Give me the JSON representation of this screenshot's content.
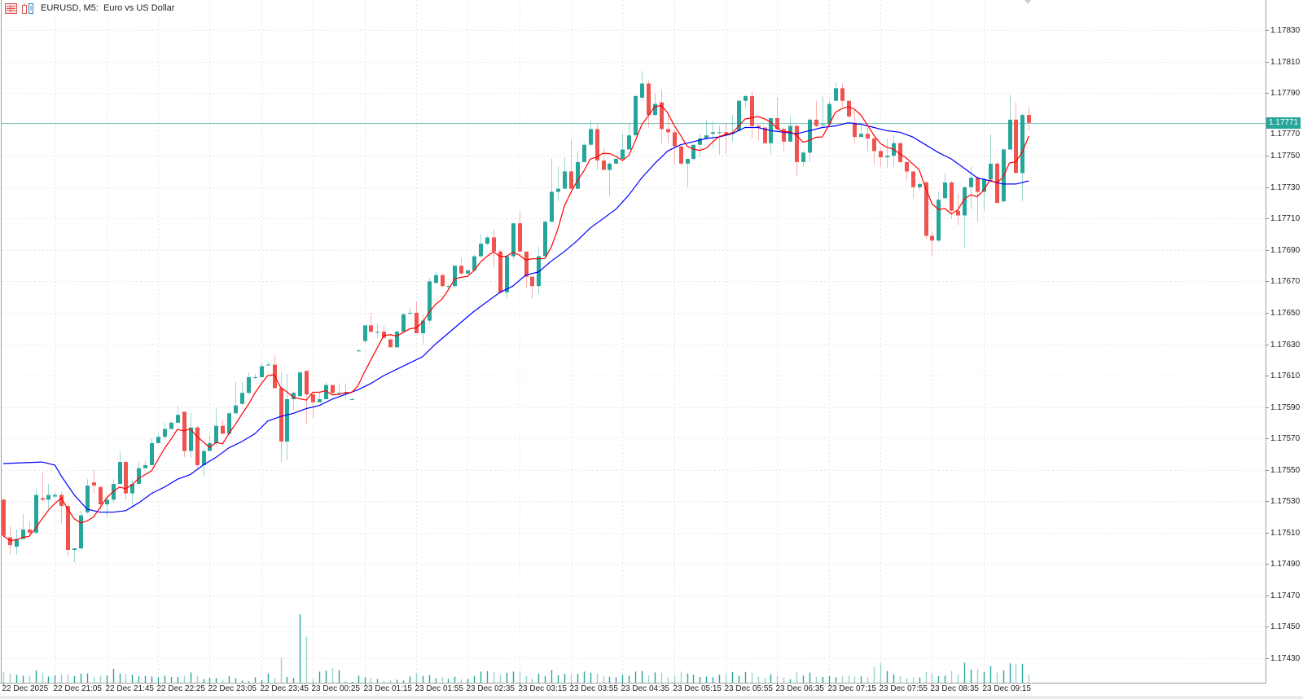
{
  "window": {
    "title": "EURUSD, M5:  Euro vs US Dollar",
    "icons": [
      "chart-menu-icon",
      "chart-properties-icon"
    ]
  },
  "colors": {
    "bull": "#26a69a",
    "bear": "#ef5350",
    "ma_fast": "#ff0000",
    "ma_slow": "#0000ff",
    "bid_line": "#7cc4bb",
    "price_label_bg": "#26a69a"
  },
  "chart_data": {
    "type": "candlestick",
    "symbol": "EURUSD",
    "timeframe": "M5",
    "current_price": "1.17771",
    "ylim": [
      1.1742,
      1.1785
    ],
    "grid": true,
    "price_ticks": [
      "1.17830",
      "1.17810",
      "1.17790",
      "1.17770",
      "1.17750",
      "1.17730",
      "1.17710",
      "1.17690",
      "1.17670",
      "1.17650",
      "1.17630",
      "1.17610",
      "1.17590",
      "1.17570",
      "1.17550",
      "1.17530",
      "1.17510",
      "1.17490",
      "1.17470",
      "1.17450",
      "1.17430"
    ],
    "time_ticks": [
      "22 Dec 2025",
      "22 Dec 21:05",
      "22 Dec 21:45",
      "22 Dec 22:25",
      "22 Dec 23:05",
      "22 Dec 23:45",
      "23 Dec 00:25",
      "23 Dec 01:15",
      "23 Dec 01:55",
      "23 Dec 02:35",
      "23 Dec 03:15",
      "23 Dec 03:55",
      "23 Dec 04:35",
      "23 Dec 05:15",
      "23 Dec 05:55",
      "23 Dec 06:35",
      "23 Dec 07:15",
      "23 Dec 07:55",
      "23 Dec 08:35",
      "23 Dec 09:15"
    ],
    "ohlc": [
      [
        1.17531,
        1.17532,
        1.17507,
        1.17508
      ],
      [
        1.17507,
        1.17514,
        1.17496,
        1.17502
      ],
      [
        1.17501,
        1.17512,
        1.17496,
        1.17506
      ],
      [
        1.17506,
        1.17522,
        1.17506,
        1.17512
      ],
      [
        1.17512,
        1.17517,
        1.17508,
        1.1751
      ],
      [
        1.1751,
        1.17538,
        1.17509,
        1.17534
      ],
      [
        1.17532,
        1.17548,
        1.1753,
        1.17531
      ],
      [
        1.17531,
        1.17541,
        1.17525,
        1.17534
      ],
      [
        1.17533,
        1.17536,
        1.17532,
        1.17534
      ],
      [
        1.17534,
        1.17536,
        1.17516,
        1.17527
      ],
      [
        1.17527,
        1.17528,
        1.17495,
        1.17499
      ],
      [
        1.17499,
        1.175,
        1.17491,
        1.175
      ],
      [
        1.175,
        1.17524,
        1.17499,
        1.17521
      ],
      [
        1.17523,
        1.17544,
        1.17522,
        1.1754
      ],
      [
        1.17542,
        1.1755,
        1.17535,
        1.1754
      ],
      [
        1.17539,
        1.1754,
        1.17524,
        1.17528
      ],
      [
        1.17528,
        1.17534,
        1.1752,
        1.17531
      ],
      [
        1.17531,
        1.17544,
        1.17529,
        1.17541
      ],
      [
        1.17541,
        1.17562,
        1.17541,
        1.17555
      ],
      [
        1.17555,
        1.17556,
        1.17531,
        1.17535
      ],
      [
        1.17535,
        1.17544,
        1.17526,
        1.17541
      ],
      [
        1.17541,
        1.17555,
        1.17541,
        1.17551
      ],
      [
        1.17551,
        1.17556,
        1.17551,
        1.17553
      ],
      [
        1.17553,
        1.1757,
        1.17553,
        1.17567
      ],
      [
        1.17567,
        1.17573,
        1.17567,
        1.17571
      ],
      [
        1.17571,
        1.1758,
        1.1757,
        1.17576
      ],
      [
        1.17576,
        1.17581,
        1.17576,
        1.1758
      ],
      [
        1.1758,
        1.17591,
        1.1758,
        1.17585
      ],
      [
        1.17587,
        1.17587,
        1.17558,
        1.17562
      ],
      [
        1.17562,
        1.17586,
        1.17558,
        1.17577
      ],
      [
        1.17577,
        1.17578,
        1.17551,
        1.17553
      ],
      [
        1.17553,
        1.17564,
        1.17546,
        1.17562
      ],
      [
        1.17562,
        1.17572,
        1.17562,
        1.17567
      ],
      [
        1.17567,
        1.17589,
        1.17566,
        1.17578
      ],
      [
        1.17578,
        1.17582,
        1.17573,
        1.17573
      ],
      [
        1.17573,
        1.17587,
        1.17572,
        1.17586
      ],
      [
        1.17586,
        1.17606,
        1.17586,
        1.17591
      ],
      [
        1.17592,
        1.17606,
        1.17591,
        1.17599
      ],
      [
        1.17599,
        1.17612,
        1.17598,
        1.17609
      ],
      [
        1.17609,
        1.17611,
        1.17608,
        1.17609
      ],
      [
        1.17609,
        1.17618,
        1.17609,
        1.17616
      ],
      [
        1.17617,
        1.17619,
        1.17616,
        1.17617
      ],
      [
        1.17617,
        1.17623,
        1.17602,
        1.17602
      ],
      [
        1.17602,
        1.17612,
        1.17555,
        1.17568
      ],
      [
        1.17568,
        1.17611,
        1.17556,
        1.17595
      ],
      [
        1.17595,
        1.176,
        1.17588,
        1.17599
      ],
      [
        1.17597,
        1.17613,
        1.17596,
        1.17612
      ],
      [
        1.17613,
        1.17613,
        1.17579,
        1.17598
      ],
      [
        1.17598,
        1.17599,
        1.17583,
        1.17593
      ],
      [
        1.17593,
        1.17599,
        1.17593,
        1.17595
      ],
      [
        1.17595,
        1.17606,
        1.17595,
        1.17604
      ],
      [
        1.17604,
        1.17604,
        1.17598,
        1.17599
      ],
      [
        1.17599,
        1.17605,
        1.17597,
        1.17599
      ],
      [
        1.17599,
        1.17605,
        1.17595,
        1.17599
      ],
      [
        1.17595,
        1.17596,
        1.17595,
        1.17595
      ],
      [
        1.17626,
        1.17627,
        1.17625,
        1.17626
      ],
      [
        1.17632,
        1.17642,
        1.17631,
        1.17642
      ],
      [
        1.17642,
        1.1765,
        1.17637,
        1.17638
      ],
      [
        1.17638,
        1.17643,
        1.17634,
        1.17638
      ],
      [
        1.17638,
        1.17642,
        1.17634,
        1.17634
      ],
      [
        1.17633,
        1.17634,
        1.17628,
        1.17628
      ],
      [
        1.17628,
        1.17639,
        1.17628,
        1.17638
      ],
      [
        1.17638,
        1.1765,
        1.17638,
        1.17649
      ],
      [
        1.1765,
        1.17653,
        1.17649,
        1.1765
      ],
      [
        1.1765,
        1.17657,
        1.17637,
        1.17637
      ],
      [
        1.17637,
        1.17649,
        1.1763,
        1.17645
      ],
      [
        1.17645,
        1.17672,
        1.17643,
        1.1767
      ],
      [
        1.17669,
        1.17676,
        1.17669,
        1.17674
      ],
      [
        1.17674,
        1.17675,
        1.17666,
        1.17667
      ],
      [
        1.17667,
        1.17668,
        1.17665,
        1.17667
      ],
      [
        1.17667,
        1.1768,
        1.17666,
        1.1768
      ],
      [
        1.1768,
        1.17685,
        1.17674,
        1.17675
      ],
      [
        1.17675,
        1.17677,
        1.17674,
        1.17677
      ],
      [
        1.17677,
        1.17687,
        1.17676,
        1.17686
      ],
      [
        1.17686,
        1.177,
        1.17685,
        1.17694
      ],
      [
        1.17694,
        1.17699,
        1.17693,
        1.17698
      ],
      [
        1.17698,
        1.17703,
        1.17679,
        1.17689
      ],
      [
        1.17689,
        1.1769,
        1.17662,
        1.17663
      ],
      [
        1.17663,
        1.17687,
        1.17659,
        1.17686
      ],
      [
        1.17686,
        1.17707,
        1.17684,
        1.17707
      ],
      [
        1.17707,
        1.17714,
        1.17688,
        1.17689
      ],
      [
        1.17689,
        1.17689,
        1.17666,
        1.17673
      ],
      [
        1.17673,
        1.17673,
        1.17659,
        1.17667
      ],
      [
        1.17667,
        1.17692,
        1.17662,
        1.17686
      ],
      [
        1.17686,
        1.17709,
        1.17685,
        1.17708
      ],
      [
        1.17708,
        1.17748,
        1.17708,
        1.17727
      ],
      [
        1.17727,
        1.17743,
        1.17721,
        1.17729
      ],
      [
        1.17729,
        1.17749,
        1.17729,
        1.1774
      ],
      [
        1.1774,
        1.1776,
        1.17729,
        1.17729
      ],
      [
        1.17729,
        1.17753,
        1.17729,
        1.17746
      ],
      [
        1.17746,
        1.17758,
        1.17746,
        1.17757
      ],
      [
        1.17757,
        1.17773,
        1.17756,
        1.17767
      ],
      [
        1.17767,
        1.1777,
        1.17741,
        1.17747
      ],
      [
        1.17747,
        1.17755,
        1.17741,
        1.17741
      ],
      [
        1.17741,
        1.17746,
        1.17724,
        1.17745
      ],
      [
        1.17745,
        1.17749,
        1.17745,
        1.17748
      ],
      [
        1.17748,
        1.17764,
        1.17747,
        1.17754
      ],
      [
        1.17754,
        1.17771,
        1.17754,
        1.17763
      ],
      [
        1.17763,
        1.17789,
        1.17763,
        1.17788
      ],
      [
        1.17787,
        1.17804,
        1.17785,
        1.17796
      ],
      [
        1.17796,
        1.17798,
        1.17768,
        1.17776
      ],
      [
        1.17776,
        1.1779,
        1.17775,
        1.17783
      ],
      [
        1.17784,
        1.17792,
        1.17758,
        1.17767
      ],
      [
        1.17767,
        1.17776,
        1.17758,
        1.17765
      ],
      [
        1.17765,
        1.17767,
        1.17744,
        1.17756
      ],
      [
        1.17756,
        1.17756,
        1.17744,
        1.17745
      ],
      [
        1.17745,
        1.17748,
        1.1773,
        1.17748
      ],
      [
        1.17748,
        1.17757,
        1.17747,
        1.17757
      ],
      [
        1.17757,
        1.17764,
        1.17749,
        1.17761
      ],
      [
        1.17761,
        1.17773,
        1.1776,
        1.17763
      ],
      [
        1.17764,
        1.17772,
        1.17755,
        1.17765
      ],
      [
        1.17765,
        1.17769,
        1.17751,
        1.17765
      ],
      [
        1.17765,
        1.17771,
        1.17751,
        1.17764
      ],
      [
        1.17764,
        1.17776,
        1.17759,
        1.17765
      ],
      [
        1.17766,
        1.17786,
        1.17765,
        1.17785
      ],
      [
        1.17785,
        1.17789,
        1.1778,
        1.17788
      ],
      [
        1.17788,
        1.17791,
        1.17761,
        1.17769
      ],
      [
        1.17769,
        1.1777,
        1.1776,
        1.17768
      ],
      [
        1.17768,
        1.17768,
        1.17758,
        1.17758
      ],
      [
        1.17758,
        1.17774,
        1.17751,
        1.17774
      ],
      [
        1.17774,
        1.17787,
        1.17766,
        1.17767
      ],
      [
        1.17767,
        1.17768,
        1.17753,
        1.17759
      ],
      [
        1.17759,
        1.17775,
        1.17759,
        1.17769
      ],
      [
        1.17769,
        1.1777,
        1.17737,
        1.17746
      ],
      [
        1.17746,
        1.17753,
        1.17743,
        1.17752
      ],
      [
        1.17752,
        1.17774,
        1.17746,
        1.17773
      ],
      [
        1.17773,
        1.17785,
        1.17768,
        1.17769
      ],
      [
        1.1777,
        1.17788,
        1.17768,
        1.1777
      ],
      [
        1.1777,
        1.17785,
        1.17769,
        1.17783
      ],
      [
        1.17785,
        1.17797,
        1.17785,
        1.17793
      ],
      [
        1.17793,
        1.17796,
        1.17781,
        1.17785
      ],
      [
        1.17785,
        1.17785,
        1.17774,
        1.17775
      ],
      [
        1.17771,
        1.1778,
        1.17758,
        1.17762
      ],
      [
        1.17762,
        1.17769,
        1.17762,
        1.17764
      ],
      [
        1.17764,
        1.17768,
        1.17753,
        1.17761
      ],
      [
        1.17761,
        1.17762,
        1.17744,
        1.17753
      ],
      [
        1.17753,
        1.17755,
        1.17743,
        1.17749
      ],
      [
        1.17749,
        1.17761,
        1.17742,
        1.1775
      ],
      [
        1.1775,
        1.17763,
        1.17743,
        1.17758
      ],
      [
        1.17758,
        1.17759,
        1.17745,
        1.17746
      ],
      [
        1.17746,
        1.17746,
        1.17734,
        1.1774
      ],
      [
        1.1774,
        1.1774,
        1.17723,
        1.1773
      ],
      [
        1.1773,
        1.17733,
        1.17728,
        1.17732
      ],
      [
        1.17733,
        1.17734,
        1.17697,
        1.17699
      ],
      [
        1.17699,
        1.17702,
        1.17686,
        1.17696
      ],
      [
        1.17696,
        1.17727,
        1.17695,
        1.17722
      ],
      [
        1.17723,
        1.17739,
        1.17723,
        1.17733
      ],
      [
        1.17733,
        1.17734,
        1.1771,
        1.17715
      ],
      [
        1.17715,
        1.17726,
        1.17706,
        1.17712
      ],
      [
        1.17712,
        1.1773,
        1.17691,
        1.1773
      ],
      [
        1.1773,
        1.17743,
        1.17716,
        1.17736
      ],
      [
        1.17736,
        1.17737,
        1.17708,
        1.17727
      ],
      [
        1.17727,
        1.17736,
        1.17715,
        1.17735
      ],
      [
        1.17735,
        1.17764,
        1.17734,
        1.17745
      ],
      [
        1.17745,
        1.17746,
        1.1772,
        1.1772
      ],
      [
        1.17721,
        1.17755,
        1.1772,
        1.17754
      ],
      [
        1.17754,
        1.17789,
        1.17754,
        1.17773
      ],
      [
        1.17773,
        1.17784,
        1.17739,
        1.17739
      ],
      [
        1.17739,
        1.17777,
        1.17721,
        1.17776
      ],
      [
        1.17776,
        1.17781,
        1.17766,
        1.17771
      ]
    ],
    "volume": [
      38,
      34,
      29,
      26,
      26,
      45,
      37,
      23,
      27,
      30,
      30,
      24,
      33,
      34,
      21,
      26,
      27,
      51,
      34,
      33,
      30,
      23,
      25,
      23,
      20,
      26,
      21,
      21,
      25,
      38,
      24,
      13,
      18,
      17,
      11,
      24,
      17,
      8,
      5,
      20,
      9,
      34,
      18,
      93,
      21,
      18,
      253,
      170,
      13,
      41,
      44,
      54,
      46,
      4,
      3,
      26,
      20,
      17,
      14,
      8,
      9,
      11,
      8,
      23,
      35,
      25,
      28,
      17,
      20,
      14,
      22,
      13,
      14,
      25,
      41,
      43,
      38,
      28,
      37,
      41,
      41,
      26,
      16,
      33,
      24,
      47,
      28,
      33,
      31,
      33,
      41,
      37,
      34,
      25,
      22,
      20,
      29,
      26,
      41,
      44,
      26,
      38,
      37,
      20,
      26,
      41,
      34,
      29,
      21,
      23,
      20,
      29,
      33,
      40,
      26,
      40,
      37,
      22,
      17,
      31,
      26,
      20,
      13,
      38,
      26,
      37,
      22,
      21,
      25,
      20,
      23,
      25,
      23,
      23,
      21,
      58,
      74,
      43,
      31,
      24,
      17,
      20,
      20,
      40,
      34,
      24,
      26,
      43,
      31,
      74,
      48,
      50,
      40,
      62,
      37,
      46,
      71,
      70,
      70,
      29
    ],
    "ma_slow_points": [
      [
        1,
        1.17554
      ],
      [
        7,
        1.17555
      ],
      [
        9,
        1.17553
      ],
      [
        10,
        1.17546
      ],
      [
        12,
        1.17534
      ],
      [
        14,
        1.17525
      ],
      [
        16,
        1.17523
      ],
      [
        18,
        1.17523
      ],
      [
        20,
        1.17524
      ],
      [
        22,
        1.17529
      ],
      [
        24,
        1.17535
      ],
      [
        26,
        1.17539
      ],
      [
        28,
        1.17544
      ],
      [
        30,
        1.17547
      ],
      [
        32,
        1.17553
      ],
      [
        34,
        1.17558
      ],
      [
        36,
        1.17564
      ],
      [
        38,
        1.17568
      ],
      [
        40,
        1.17573
      ],
      [
        42,
        1.17581
      ],
      [
        44,
        1.17584
      ],
      [
        46,
        1.17586
      ],
      [
        48,
        1.17589
      ],
      [
        50,
        1.17591
      ],
      [
        52,
        1.17595
      ],
      [
        54,
        1.17598
      ],
      [
        56,
        1.17601
      ],
      [
        58,
        1.17605
      ],
      [
        60,
        1.1761
      ],
      [
        62,
        1.17614
      ],
      [
        64,
        1.17618
      ],
      [
        66,
        1.17622
      ],
      [
        68,
        1.1763
      ],
      [
        70,
        1.17637
      ],
      [
        72,
        1.17644
      ],
      [
        74,
        1.17651
      ],
      [
        76,
        1.17657
      ],
      [
        78,
        1.17663
      ],
      [
        80,
        1.17667
      ],
      [
        82,
        1.17674
      ],
      [
        84,
        1.17676
      ],
      [
        86,
        1.17683
      ],
      [
        88,
        1.17689
      ],
      [
        90,
        1.17696
      ],
      [
        92,
        1.17704
      ],
      [
        94,
        1.1771
      ],
      [
        96,
        1.17716
      ],
      [
        98,
        1.17725
      ],
      [
        100,
        1.17736
      ],
      [
        102,
        1.17745
      ],
      [
        104,
        1.17753
      ],
      [
        106,
        1.17757
      ],
      [
        108,
        1.17759
      ],
      [
        110,
        1.17761
      ],
      [
        112,
        1.17762
      ],
      [
        114,
        1.17764
      ],
      [
        116,
        1.17768
      ],
      [
        118,
        1.17768
      ],
      [
        120,
        1.17766
      ],
      [
        122,
        1.17765
      ],
      [
        124,
        1.17764
      ],
      [
        126,
        1.17766
      ],
      [
        128,
        1.17768
      ],
      [
        130,
        1.17769
      ],
      [
        132,
        1.17771
      ],
      [
        134,
        1.1777
      ],
      [
        136,
        1.17768
      ],
      [
        138,
        1.17766
      ],
      [
        140,
        1.17765
      ],
      [
        142,
        1.17762
      ],
      [
        144,
        1.17757
      ],
      [
        146,
        1.17752
      ],
      [
        148,
        1.17748
      ],
      [
        150,
        1.17742
      ],
      [
        152,
        1.17736
      ],
      [
        154,
        1.17734
      ],
      [
        156,
        1.17732
      ],
      [
        158,
        1.17732
      ],
      [
        160,
        1.17734
      ]
    ]
  }
}
